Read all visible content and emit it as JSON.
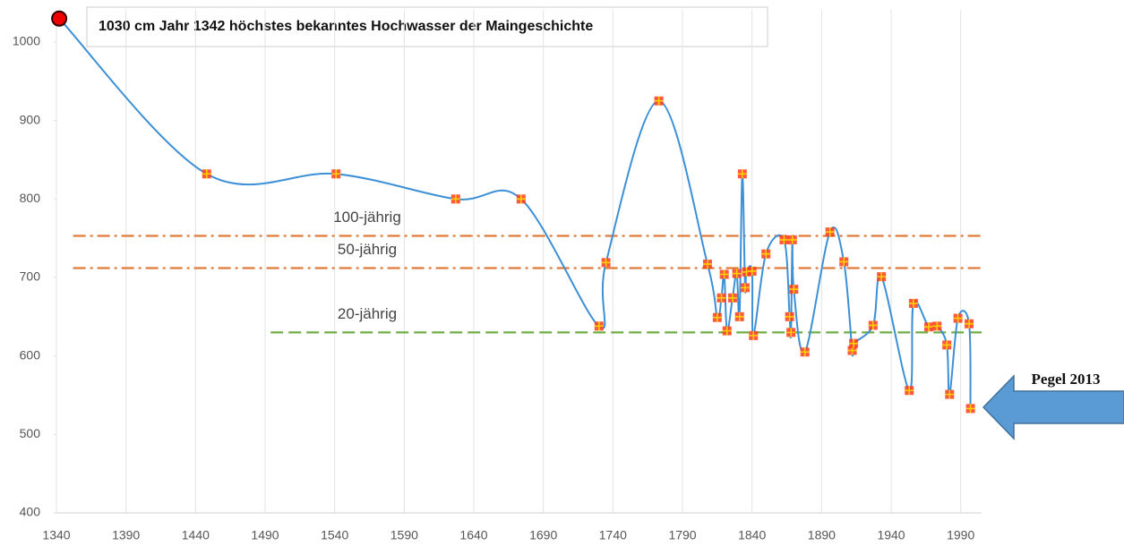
{
  "chart_data": {
    "type": "line",
    "x": [
      1342,
      1448,
      1541,
      1627,
      1674,
      1730,
      1735,
      1773,
      1808,
      1815,
      1818,
      1820,
      1822,
      1826,
      1829,
      1831,
      1833,
      1835,
      1836,
      1840,
      1841,
      1850,
      1863,
      1867,
      1868,
      1869,
      1870,
      1878,
      1896,
      1906,
      1912,
      1913,
      1927,
      1933,
      1953,
      1956,
      1967,
      1973,
      1980,
      1982,
      1988,
      1996,
      1997
    ],
    "series": [
      {
        "color": "#3d8fd6",
        "marker_color": "#ff3b1f",
        "values": [
          1030,
          832,
          832,
          800,
          800,
          638,
          719,
          925,
          717,
          649,
          674,
          704,
          632,
          674,
          705,
          650,
          832,
          687,
          707,
          708,
          626,
          730,
          748,
          650,
          630,
          748,
          685,
          605,
          758,
          720,
          607,
          616,
          639,
          701,
          556,
          667,
          637,
          638,
          614,
          551,
          648,
          641,
          533
        ]
      }
    ],
    "xlim": [
      1340,
      2005
    ],
    "xticks": [
      1340,
      1390,
      1440,
      1490,
      1540,
      1590,
      1640,
      1690,
      1740,
      1790,
      1840,
      1890,
      1940,
      1990
    ],
    "ylim": [
      400,
      1030
    ],
    "yticks": [
      400,
      500,
      600,
      700,
      800,
      900,
      1000
    ],
    "grid": true,
    "reference_lines": [
      {
        "label": "100-jährig",
        "value": 753,
        "x_from": 1352,
        "color": "#e07b39",
        "style": "dashdot"
      },
      {
        "label": "50-jährig",
        "value": 712,
        "x_from": 1352,
        "color": "#e07b39",
        "style": "dashdot"
      },
      {
        "label": "20-jährig",
        "value": 630,
        "x_from": 1494,
        "color": "#70ad47",
        "style": "dash"
      }
    ],
    "annotation": "1030 cm Jahr 1342 höchstes bekanntes Hochwasser der Maingeschichte",
    "arrow_label": "Pegel 2013"
  }
}
